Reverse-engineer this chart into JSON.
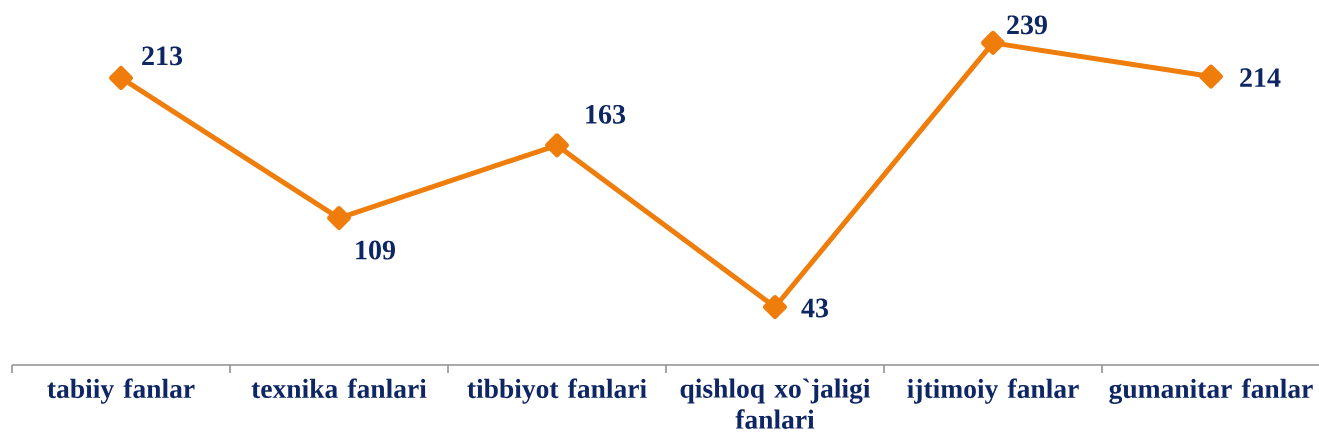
{
  "chart_data": {
    "type": "line",
    "categories": [
      "tabiiy fanlar",
      "texnika fanlari",
      "tibbiyot fanlari",
      "qishloq xo`jaligi fanlari",
      "ijtimoiy fanlar",
      "gumanitar fanlar"
    ],
    "values": [
      213,
      109,
      163,
      43,
      239,
      214
    ],
    "color": "#ef7d0b",
    "marker": "diamond",
    "line_style": "solid",
    "data_labels": true,
    "tick_labels": "x"
  }
}
